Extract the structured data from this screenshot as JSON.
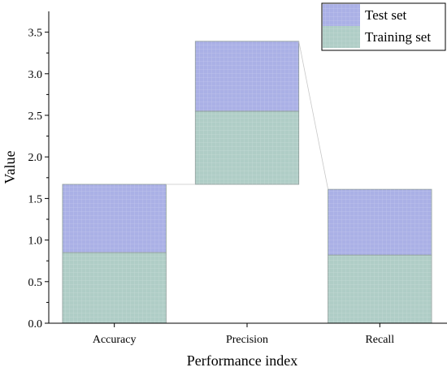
{
  "chart_data": {
    "type": "bar",
    "stacked": true,
    "waterfall_connectors": true,
    "categories": [
      "Accuracy",
      "Precision",
      "Recall"
    ],
    "base_offsets": [
      0,
      1.67,
      0
    ],
    "series": [
      {
        "name": "Training set",
        "values": [
          0.85,
          0.88,
          0.82
        ],
        "color": "#afcdc6"
      },
      {
        "name": "Test set",
        "values": [
          0.82,
          0.84,
          0.79
        ],
        "color": "#aab0e6"
      }
    ],
    "xlabel": "Performance index",
    "ylabel": "Value",
    "ylim": [
      0,
      3.75
    ],
    "yticks": [
      "0.0",
      "0.5",
      "1.0",
      "1.5",
      "2.0",
      "2.5",
      "3.0",
      "3.5"
    ],
    "ytick_values": [
      0,
      0.5,
      1.0,
      1.5,
      2.0,
      2.5,
      3.0,
      3.5
    ],
    "grid": false,
    "legend_position": "top-right"
  }
}
